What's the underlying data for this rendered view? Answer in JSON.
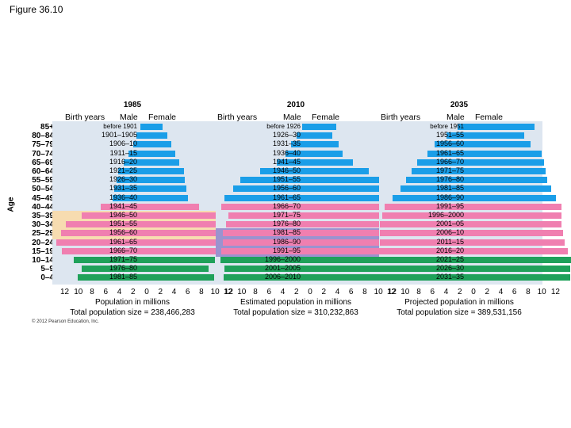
{
  "figure_label": "Figure 36.10",
  "copyright": "© 2012 Pearson Education, Inc.",
  "colors": {
    "male": "#1a9ee8",
    "female": "#1a9ee8",
    "postreproductive": "#1a9ee8",
    "reproductive": "#f07fb0",
    "prereproductive": "#1fa15a",
    "background": "#dde6f0",
    "highlight_1985": "#f7dcb0",
    "highlight_2010": "#9b93cf"
  },
  "chart_data": {
    "type": "bar",
    "ylabel": "Age",
    "age_groups": [
      "85+",
      "80–84",
      "75–79",
      "70–74",
      "65–69",
      "60–64",
      "55–59",
      "50–54",
      "45–49",
      "40–44",
      "35–39",
      "30–34",
      "25–29",
      "20–24",
      "15–19",
      "10–14",
      "5–9",
      "0–4"
    ],
    "x_ticks": [
      "12",
      "10",
      "8",
      "6",
      "4",
      "2",
      "0",
      "2",
      "4",
      "6",
      "8",
      "10",
      "12"
    ],
    "xlim": [
      -12,
      12
    ],
    "male_label": "Male",
    "female_label": "Female",
    "birth_years_label": "Birth years",
    "pyramids": [
      {
        "year": "1985",
        "xlabel": "Population in millions",
        "total": "Total population size = 238,466,283",
        "cohorts": [
          "before 1901",
          "1901–1905",
          "1906–10",
          "1911–15",
          "1916–20",
          "1921–25",
          "1926–30",
          "1931–35",
          "1936–40",
          "1941–45",
          "1946–50",
          "1951–55",
          "1956–60",
          "1961–65",
          "1966–70",
          "1971–75",
          "1976–80",
          "1981–85"
        ],
        "male": [
          0.8,
          1.3,
          1.7,
          2.3,
          2.8,
          3.5,
          3.7,
          4.0,
          4.2,
          5.7,
          8.0,
          10.0,
          10.6,
          11.2,
          10.5,
          9.0,
          8.0,
          8.5
        ],
        "female": [
          2.0,
          2.5,
          3.0,
          3.5,
          4.0,
          4.6,
          4.7,
          4.9,
          5.1,
          6.5,
          8.5,
          10.0,
          10.5,
          11.0,
          10.2,
          8.4,
          7.6,
          8.3
        ],
        "colors": [
          "post",
          "post",
          "post",
          "post",
          "post",
          "post",
          "post",
          "post",
          "post",
          "repro",
          "repro",
          "repro",
          "repro",
          "repro",
          "repro",
          "pre",
          "pre",
          "pre"
        ]
      },
      {
        "year": "2010",
        "xlabel": "Estimated population in millions",
        "total": "Total population size = 310,232,863",
        "cohorts": [
          "before 1926",
          "1926–30",
          "1931–35",
          "1936–40",
          "1941–45",
          "1946–50",
          "1951–55",
          "1956–60",
          "1961–65",
          "1966–70",
          "1971–75",
          "1976–80",
          "1981–85",
          "1986–90",
          "1991–95",
          "1996–2000",
          "2001–2005",
          "2006–2010"
        ],
        "male": [
          1.0,
          1.7,
          2.4,
          3.0,
          4.1,
          6.2,
          8.6,
          9.5,
          10.6,
          11.0,
          10.1,
          10.4,
          10.8,
          10.8,
          11.0,
          11.1,
          10.6,
          10.7
        ],
        "female": [
          3.2,
          2.7,
          3.5,
          4.0,
          5.3,
          7.3,
          9.3,
          10.0,
          10.9,
          11.2,
          10.5,
          10.6,
          10.7,
          10.5,
          10.8,
          10.8,
          10.2,
          10.2
        ],
        "colors": [
          "post",
          "post",
          "post",
          "post",
          "post",
          "post",
          "post",
          "post",
          "post",
          "repro",
          "repro",
          "repro",
          "repro",
          "repro",
          "repro",
          "pre",
          "pre",
          "pre"
        ]
      },
      {
        "year": "2035",
        "xlabel": "Projected population in millions",
        "total": "Total population size = 389,531,156",
        "cohorts": [
          "before 1951",
          "1951–55",
          "1956–60",
          "1961–65",
          "1966–70",
          "1971–75",
          "1976–80",
          "1981–85",
          "1986–90",
          "1991–95",
          "1996–2000",
          "2001–05",
          "2006–10",
          "2011–15",
          "2016–20",
          "2021–25",
          "2026–30",
          "2031–35"
        ],
        "male": [
          2.0,
          3.3,
          4.8,
          5.7,
          7.0,
          7.6,
          8.3,
          9.0,
          10.0,
          11.0,
          11.3,
          11.6,
          11.6,
          11.6,
          11.8,
          12.2,
          12.2,
          12.2
        ],
        "female": [
          7.5,
          6.3,
          7.1,
          8.4,
          8.7,
          8.9,
          9.1,
          9.6,
          10.2,
          10.9,
          10.9,
          10.9,
          11.1,
          11.3,
          11.7,
          12.1,
          12.0,
          12.0
        ],
        "colors": [
          "post",
          "post",
          "post",
          "post",
          "post",
          "post",
          "post",
          "post",
          "post",
          "repro",
          "repro",
          "repro",
          "repro",
          "repro",
          "repro",
          "pre",
          "pre",
          "pre"
        ]
      }
    ]
  }
}
